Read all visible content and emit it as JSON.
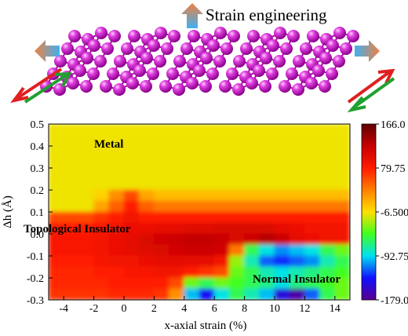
{
  "chart_data": {
    "type": "heatmap",
    "title": "Strain engineering",
    "xlabel": "x-axial strain (%)",
    "ylabel": "Δh (Å)",
    "annotations": [
      "Metal",
      "Topological Insulator",
      "Normal  Insulator"
    ],
    "xlim": [
      -5,
      15
    ],
    "xticks": [
      -4,
      -2,
      0,
      2,
      4,
      6,
      8,
      10,
      12,
      14
    ],
    "ylim": [
      -0.3,
      0.5
    ],
    "yticks": [
      0.5,
      0.4,
      0.3,
      0.2,
      0.1,
      {
        "value": 0,
        "label": "0.0"
      },
      -0.1,
      -0.2,
      -0.3
    ],
    "zlim": [
      -179,
      166
    ],
    "zticks": [
      {
        "value": 166,
        "label": "166.0"
      },
      79.75,
      {
        "value": -6.5,
        "label": "-6.500"
      },
      -92.75,
      {
        "value": -179,
        "label": "-179.0"
      }
    ],
    "colormap": [
      "#5a0090",
      "#1010ff",
      "#00e0f0",
      "#40ff20",
      "#ffe000",
      "#ff8000",
      "#ff1a00",
      "#c80000",
      "#600000"
    ],
    "x": [
      -4.5,
      -3.5,
      -2.5,
      -1.5,
      -0.5,
      0.5,
      1.5,
      2.5,
      3.5,
      4.5,
      5.5,
      6.5,
      7.5,
      8.5,
      9.5,
      10.5,
      11.5,
      12.5,
      13.5,
      14.5
    ],
    "y": [
      0.475,
      0.425,
      0.375,
      0.325,
      0.275,
      0.225,
      0.175,
      0.125,
      0.075,
      0.025,
      -0.025,
      -0.075,
      -0.125,
      -0.175,
      -0.225,
      -0.275
    ],
    "z": [
      [
        -10,
        -10,
        -10,
        -10,
        -10,
        -10,
        -10,
        -10,
        -10,
        -10,
        -10,
        -10,
        -10,
        -10,
        -10,
        -10,
        -10,
        -10,
        -10,
        -10
      ],
      [
        -10,
        -10,
        -10,
        -10,
        -10,
        -10,
        -10,
        -10,
        -10,
        -10,
        -10,
        -10,
        -10,
        -10,
        -10,
        -10,
        -10,
        -10,
        -10,
        -10
      ],
      [
        -10,
        -10,
        -10,
        -10,
        -10,
        -10,
        -10,
        -10,
        -10,
        -10,
        -10,
        -10,
        -10,
        -10,
        -10,
        -10,
        -10,
        -10,
        -10,
        -10
      ],
      [
        -10,
        -10,
        -10,
        -10,
        -10,
        -10,
        -10,
        -10,
        -10,
        -10,
        -10,
        -10,
        -10,
        -10,
        -10,
        -10,
        -10,
        -10,
        -10,
        -10
      ],
      [
        -10,
        -10,
        -10,
        -10,
        -10,
        -10,
        -10,
        -10,
        -10,
        -10,
        -10,
        -10,
        -10,
        -10,
        -10,
        -10,
        -10,
        -10,
        -10,
        -10
      ],
      [
        -10,
        -10,
        -10,
        -10,
        -10,
        -10,
        -10,
        -10,
        -10,
        -10,
        -10,
        -10,
        -10,
        -10,
        -10,
        -10,
        -10,
        -10,
        -10,
        -10
      ],
      [
        -10,
        -10,
        -10,
        0,
        30,
        60,
        20,
        10,
        10,
        10,
        10,
        10,
        10,
        10,
        10,
        10,
        10,
        10,
        10,
        10
      ],
      [
        -10,
        -10,
        -10,
        20,
        50,
        80,
        50,
        40,
        40,
        40,
        40,
        40,
        40,
        40,
        40,
        40,
        40,
        40,
        40,
        40
      ],
      [
        60,
        60,
        60,
        70,
        80,
        90,
        80,
        80,
        80,
        80,
        80,
        80,
        80,
        80,
        80,
        80,
        80,
        80,
        80,
        80
      ],
      [
        80,
        80,
        80,
        85,
        90,
        95,
        95,
        100,
        100,
        105,
        105,
        110,
        110,
        110,
        110,
        100,
        95,
        90,
        90,
        90
      ],
      [
        85,
        85,
        85,
        90,
        95,
        100,
        110,
        115,
        120,
        125,
        125,
        120,
        110,
        120,
        130,
        120,
        100,
        95,
        90,
        90
      ],
      [
        85,
        85,
        85,
        90,
        95,
        100,
        105,
        110,
        115,
        120,
        120,
        115,
        40,
        -60,
        -90,
        -110,
        -100,
        -90,
        -60,
        -40
      ],
      [
        80,
        80,
        80,
        85,
        90,
        90,
        95,
        100,
        100,
        100,
        100,
        90,
        -30,
        -80,
        -120,
        -130,
        -120,
        -110,
        -80,
        -60
      ],
      [
        75,
        75,
        75,
        80,
        80,
        85,
        85,
        90,
        90,
        80,
        70,
        60,
        -40,
        -60,
        -80,
        -90,
        -80,
        -70,
        -60,
        -50
      ],
      [
        75,
        75,
        75,
        75,
        80,
        80,
        80,
        80,
        60,
        -40,
        -60,
        -40,
        -50,
        -60,
        -70,
        -90,
        -70,
        -60,
        -50,
        -40
      ],
      [
        70,
        70,
        70,
        70,
        75,
        75,
        75,
        70,
        30,
        -100,
        -140,
        -90,
        -60,
        -80,
        -100,
        -150,
        -170,
        -120,
        -60,
        -40
      ]
    ]
  }
}
